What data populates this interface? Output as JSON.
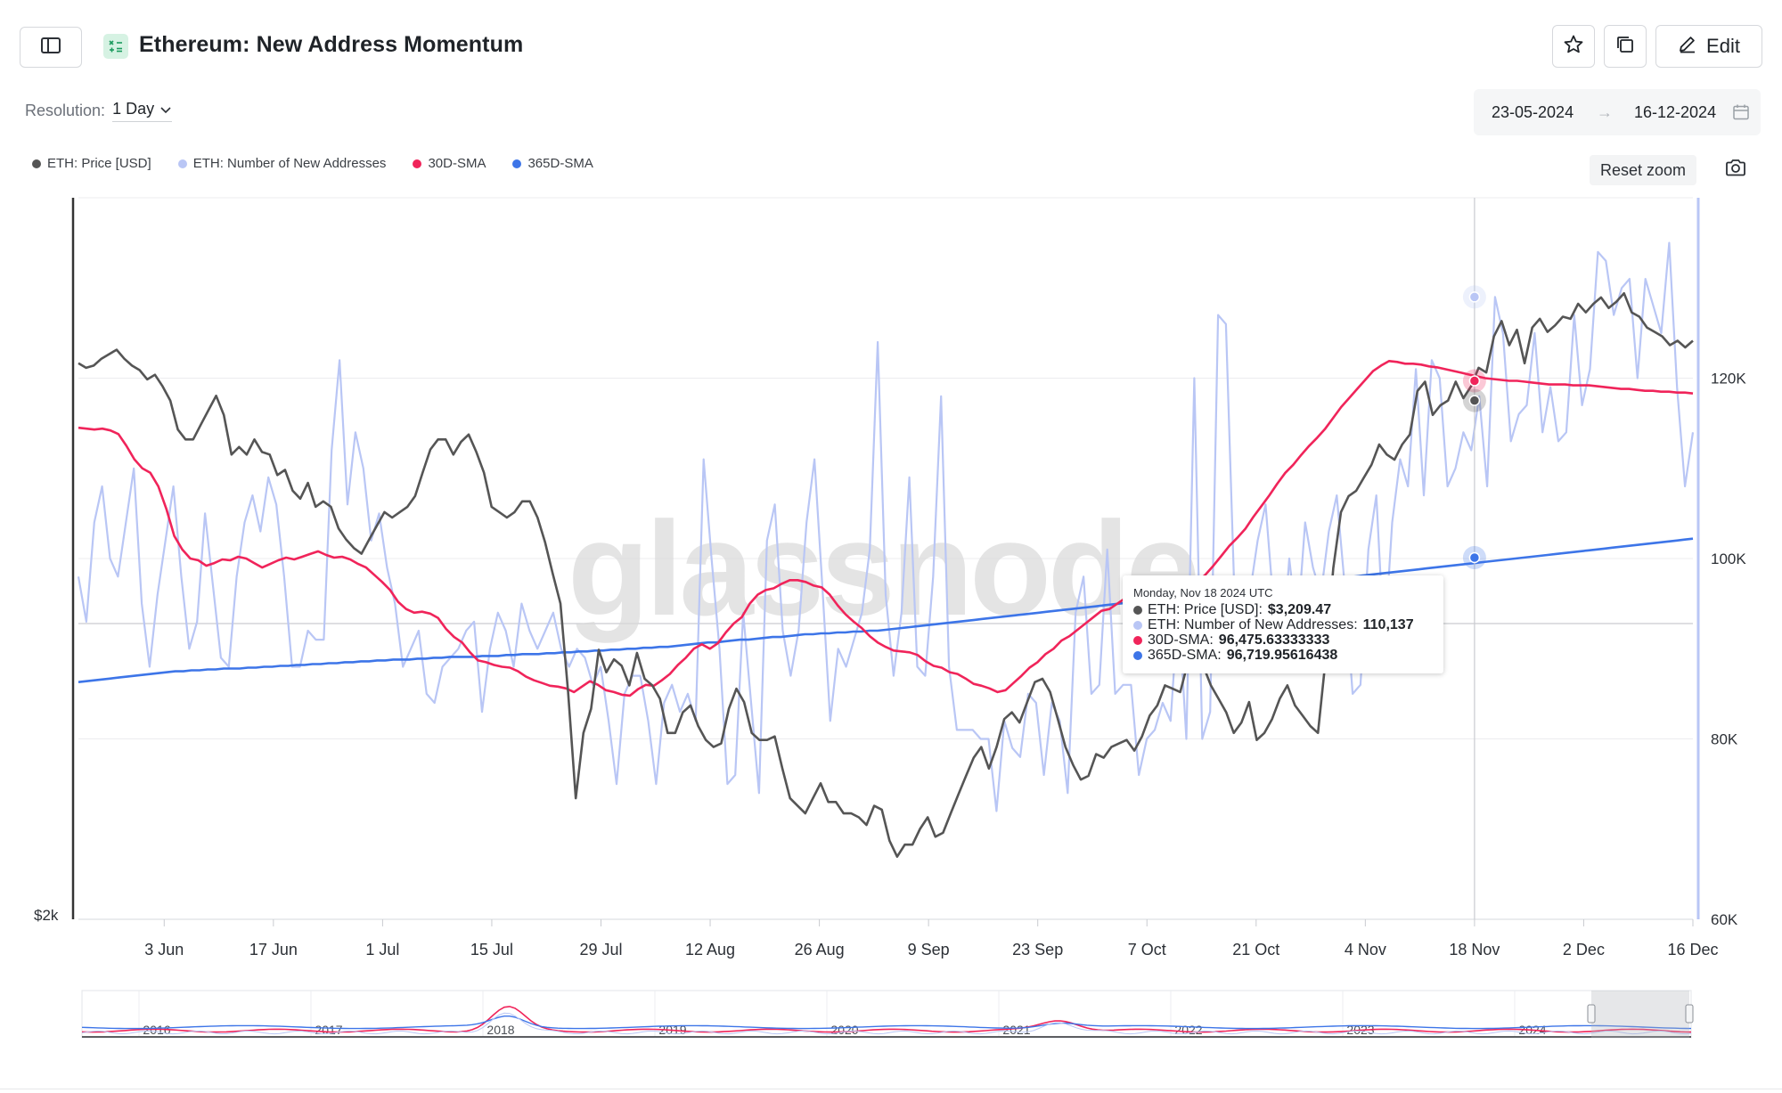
{
  "header": {
    "title": "Ethereum: New Address Momentum",
    "edit_label": "Edit"
  },
  "toolbar": {
    "resolution_label": "Resolution:",
    "resolution_value": "1 Day",
    "date_from": "23-05-2024",
    "date_arrow": "→",
    "date_to": "16-12-2024",
    "reset_zoom_label": "Reset zoom"
  },
  "legend": [
    {
      "label": "ETH: Price [USD]",
      "color": "#555555"
    },
    {
      "label": "ETH: Number of New Addresses",
      "color": "#b9c6f5"
    },
    {
      "label": "30D-SMA",
      "color": "#f0245a"
    },
    {
      "label": "365D-SMA",
      "color": "#3d75e8"
    }
  ],
  "tooltip": {
    "date": "Monday, Nov 18 2024 UTC",
    "rows": [
      {
        "label": "ETH: Price [USD]: ",
        "value": "$3,209.47",
        "color": "#555555"
      },
      {
        "label": "ETH: Number of New Addresses: ",
        "value": "110,137",
        "color": "#b9c6f5"
      },
      {
        "label": "30D-SMA: ",
        "value": "96,475.63333333",
        "color": "#f0245a"
      },
      {
        "label": "365D-SMA: ",
        "value": "96,719.95616438",
        "color": "#3d75e8"
      }
    ]
  },
  "watermark": "glassnode",
  "navigator_years": [
    "2016",
    "2017",
    "2018",
    "2019",
    "2020",
    "2021",
    "2022",
    "2023",
    "2024"
  ],
  "chart_data": {
    "type": "line",
    "x_ticks": [
      "3 Jun",
      "17 Jun",
      "1 Jul",
      "15 Jul",
      "29 Jul",
      "12 Aug",
      "26 Aug",
      "9 Sep",
      "23 Sep",
      "7 Oct",
      "21 Oct",
      "4 Nov",
      "18 Nov",
      "2 Dec",
      "16 Dec"
    ],
    "x_range": [
      "2024-05-23",
      "2024-12-16"
    ],
    "left_axis": {
      "label": "",
      "ticks": [
        "$2k"
      ],
      "scale": "log"
    },
    "right_axis": {
      "label": "",
      "ticks": [
        "120K",
        "100K",
        "80K",
        "60K"
      ],
      "range": [
        60000,
        140000
      ]
    },
    "grid": true,
    "legend_position": "top-left",
    "series": [
      {
        "name": "ETH: Number of New Addresses",
        "axis": "right",
        "color": "#b9c6f5",
        "values": [
          98000,
          93000,
          104000,
          108000,
          100000,
          98000,
          104000,
          110000,
          95000,
          88000,
          96000,
          102000,
          108000,
          98000,
          90000,
          93000,
          105000,
          97000,
          89000,
          88000,
          98000,
          104000,
          107000,
          103000,
          109000,
          106000,
          98000,
          88000,
          88000,
          92000,
          91000,
          91000,
          112000,
          122000,
          106000,
          114000,
          110000,
          102000,
          105000,
          99000,
          95000,
          88000,
          90000,
          92000,
          85000,
          84000,
          88000,
          89000,
          90000,
          92000,
          93000,
          83000,
          90000,
          94000,
          92000,
          88000,
          95000,
          92000,
          90000,
          92000,
          94000,
          90000,
          88000,
          90000,
          89000,
          86000,
          88000,
          82000,
          75000,
          85000,
          87000,
          87000,
          82000,
          75000,
          84000,
          86000,
          83000,
          85000,
          82000,
          111000,
          100000,
          90000,
          75000,
          76000,
          94000,
          84000,
          74000,
          102000,
          106000,
          92000,
          87000,
          92000,
          104000,
          111000,
          97000,
          82000,
          90000,
          88000,
          91000,
          94000,
          101000,
          124000,
          96000,
          87000,
          94000,
          109000,
          88000,
          87000,
          98000,
          118000,
          88000,
          81000,
          81000,
          81000,
          80000,
          80000,
          72000,
          82000,
          79000,
          78000,
          85000,
          84000,
          76000,
          84000,
          82000,
          74000,
          94000,
          98000,
          85000,
          86000,
          101000,
          85000,
          86000,
          86000,
          76000,
          80000,
          81000,
          84000,
          82000,
          95000,
          80000,
          120000,
          80000,
          83000,
          127000,
          126000,
          98000,
          97000,
          96000,
          102000,
          106000,
          95000,
          88000,
          100000,
          92000,
          104000,
          99000,
          96000,
          103000,
          107000,
          97000,
          85000,
          86000,
          101000,
          107000,
          90000,
          104000,
          111000,
          108000,
          121000,
          107000,
          122000,
          120000,
          108000,
          110000,
          114000,
          112000,
          118000,
          108000,
          129000,
          125000,
          113000,
          116000,
          117000,
          125000,
          114000,
          119000,
          113000,
          114000,
          127000,
          117000,
          121000,
          134000,
          133000,
          127000,
          130000,
          131000,
          120000,
          131000,
          128000,
          125000,
          135000,
          119000,
          108000,
          114000
        ]
      },
      {
        "name": "30D-SMA",
        "axis": "right",
        "color": "#f0245a",
        "values": [
          114500,
          114400,
          114300,
          114400,
          114200,
          113800,
          112500,
          111000,
          110000,
          109500,
          108000,
          105500,
          102500,
          101000,
          100000,
          99800,
          99200,
          99500,
          99900,
          99800,
          100200,
          100000,
          99500,
          99000,
          99400,
          99800,
          100100,
          99900,
          100200,
          100500,
          100800,
          100400,
          100100,
          100200,
          99900,
          99400,
          99000,
          98200,
          97400,
          96500,
          95200,
          94400,
          94000,
          94100,
          93900,
          93400,
          92200,
          91300,
          90700,
          89600,
          88700,
          88500,
          88200,
          88000,
          87900,
          87500,
          86900,
          86500,
          86200,
          85900,
          85800,
          85600,
          85200,
          85800,
          86400,
          86000,
          85400,
          85200,
          84900,
          84800,
          85500,
          86000,
          85900,
          86500,
          87200,
          88200,
          89000,
          90000,
          90500,
          90000,
          90600,
          91800,
          92800,
          93500,
          95000,
          96000,
          96500,
          96700,
          97200,
          97600,
          97600,
          97400,
          97000,
          96800,
          96000,
          94800,
          93800,
          93000,
          92300,
          91400,
          90700,
          90200,
          89800,
          89700,
          89600,
          89300,
          88600,
          88100,
          87900,
          87400,
          87200,
          86700,
          86100,
          85900,
          85600,
          85200,
          85400,
          86200,
          87000,
          87900,
          88500,
          89400,
          90000,
          90900,
          91400,
          92100,
          92800,
          93500,
          94200,
          94400,
          95000,
          95600,
          96000,
          96400,
          96400,
          96400,
          96200,
          96600,
          96400,
          96900,
          97400,
          98200,
          99200,
          100300,
          101400,
          102300,
          103300,
          104600,
          105800,
          107000,
          108300,
          109500,
          110400,
          111500,
          112500,
          113400,
          114400,
          115600,
          116800,
          117800,
          118800,
          119800,
          120800,
          121400,
          121900,
          121800,
          121600,
          121600,
          121500,
          121300,
          121200,
          121000,
          120800,
          120600,
          120400,
          120200,
          120000,
          119900,
          119800,
          119700,
          119700,
          119600,
          119500,
          119400,
          119300,
          119300,
          119300,
          119200,
          119200,
          119200,
          119100,
          119000,
          118900,
          118800,
          118800,
          118700,
          118600,
          118600,
          118500,
          118500,
          118400,
          118400,
          118300
        ]
      },
      {
        "name": "365D-SMA",
        "axis": "right",
        "color": "#3d75e8",
        "values": [
          86300,
          86400,
          86500,
          86600,
          86700,
          86800,
          86900,
          87000,
          87100,
          87200,
          87300,
          87400,
          87500,
          87500,
          87600,
          87600,
          87700,
          87700,
          87800,
          87800,
          87800,
          87900,
          87900,
          88000,
          88000,
          88100,
          88100,
          88200,
          88200,
          88300,
          88300,
          88400,
          88400,
          88500,
          88500,
          88600,
          88600,
          88700,
          88700,
          88800,
          88800,
          88800,
          88900,
          88900,
          89000,
          89000,
          89100,
          89100,
          89100,
          89100,
          89200,
          89200,
          89200,
          89300,
          89300,
          89400,
          89400,
          89400,
          89500,
          89500,
          89600,
          89600,
          89700,
          89700,
          89800,
          89800,
          89900,
          89900,
          90000,
          90000,
          90100,
          90100,
          90200,
          90200,
          90300,
          90400,
          90500,
          90600,
          90700,
          90700,
          90800,
          90900,
          91000,
          91000,
          91100,
          91200,
          91300,
          91300,
          91400,
          91500,
          91600,
          91600,
          91700,
          91700,
          91800,
          91800,
          91900,
          91900,
          92000,
          92000,
          92100,
          92200,
          92300,
          92400,
          92500,
          92600,
          92700,
          92800,
          92900,
          93000,
          93100,
          93200,
          93300,
          93400,
          93500,
          93600,
          93700,
          93800,
          93900,
          94000,
          94100,
          94200,
          94300,
          94400,
          94500,
          94600,
          94700,
          94800,
          94900,
          95000,
          95100,
          95200,
          95300,
          95400,
          95500,
          95600,
          95700,
          95800,
          95900,
          96000,
          96100,
          96200,
          96300,
          96400,
          96500,
          96700,
          96800,
          96900,
          97000,
          97100,
          97200,
          97300,
          97400,
          97500,
          97600,
          97700,
          97800,
          97900,
          98000,
          98100,
          98200,
          98300,
          98400,
          98500,
          98600,
          98700,
          98800,
          98900,
          99000,
          99100,
          99200,
          99300,
          99400,
          99500,
          99600,
          99700,
          99800,
          99900,
          100000,
          100100,
          100200,
          100300,
          100400,
          100500,
          100600,
          100700,
          100800,
          100900,
          101000,
          101100,
          101200,
          101300,
          101400,
          101500,
          101600,
          101700,
          101800,
          101900,
          102000,
          102100,
          102200
        ]
      },
      {
        "name": "ETH: Price [USD]",
        "axis": "left",
        "color": "#555555",
        "values": [
          3800,
          3780,
          3790,
          3820,
          3840,
          3860,
          3820,
          3790,
          3770,
          3730,
          3750,
          3700,
          3640,
          3520,
          3480,
          3480,
          3540,
          3600,
          3660,
          3580,
          3420,
          3450,
          3420,
          3480,
          3430,
          3420,
          3340,
          3360,
          3280,
          3250,
          3310,
          3220,
          3240,
          3220,
          3140,
          3100,
          3070,
          3050,
          3100,
          3150,
          3200,
          3180,
          3200,
          3220,
          3260,
          3350,
          3440,
          3480,
          3480,
          3420,
          3470,
          3500,
          3430,
          3350,
          3220,
          3200,
          3180,
          3200,
          3240,
          3240,
          3180,
          3090,
          2980,
          2880,
          2600,
          2300,
          2480,
          2550,
          2730,
          2660,
          2700,
          2680,
          2620,
          2720,
          2640,
          2620,
          2580,
          2480,
          2480,
          2540,
          2560,
          2500,
          2460,
          2440,
          2450,
          2550,
          2610,
          2570,
          2480,
          2460,
          2460,
          2470,
          2380,
          2300,
          2280,
          2260,
          2300,
          2340,
          2290,
          2290,
          2260,
          2260,
          2250,
          2230,
          2280,
          2270,
          2190,
          2150,
          2180,
          2180,
          2220,
          2250,
          2200,
          2210,
          2260,
          2310,
          2360,
          2410,
          2440,
          2380,
          2440,
          2520,
          2540,
          2510,
          2570,
          2630,
          2640,
          2600,
          2520,
          2440,
          2390,
          2350,
          2360,
          2420,
          2410,
          2440,
          2450,
          2460,
          2430,
          2470,
          2530,
          2560,
          2620,
          2610,
          2600,
          2690,
          2770,
          2680,
          2620,
          2580,
          2540,
          2480,
          2510,
          2570,
          2460,
          2480,
          2520,
          2580,
          2620,
          2560,
          2530,
          2500,
          2480,
          2700,
          3000,
          3200,
          3260,
          3280,
          3330,
          3380,
          3460,
          3420,
          3400,
          3460,
          3500,
          3680,
          3720,
          3580,
          3620,
          3640,
          3720,
          3650,
          3700,
          3780,
          3760,
          3920,
          3990,
          3880,
          3950,
          3800,
          3960,
          4000,
          3940,
          3970,
          4010,
          4000,
          4070,
          4030,
          4070,
          4100,
          4050,
          4080,
          4120,
          4030,
          4010,
          3960,
          3940,
          3920,
          3880,
          3900,
          3870,
          3900
        ]
      }
    ]
  }
}
